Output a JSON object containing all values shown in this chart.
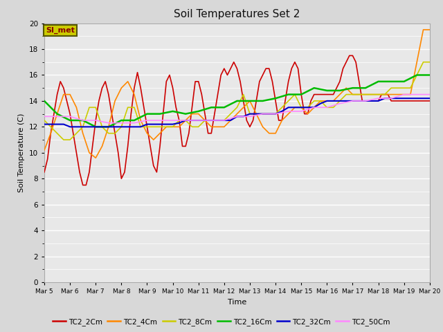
{
  "title": "Soil Temperatures Set 2",
  "xlabel": "Time",
  "ylabel": "Soil Temperature (C)",
  "ylim": [
    0,
    20
  ],
  "background_color": "#d8d8d8",
  "plot_bg_color": "#e8e8e8",
  "annotation_text": "SI_met",
  "annotation_bg": "#cccc00",
  "annotation_border": "#555500",
  "annotation_text_color": "#880000",
  "x_tick_labels": [
    "Mar 5",
    "Mar 6",
    "Mar 7",
    "Mar 8",
    "Mar 9",
    "Mar 10",
    "Mar 11",
    "Mar 12",
    "Mar 13",
    "Mar 14",
    "Mar 15",
    "Mar 16",
    "Mar 17",
    "Mar 18",
    "Mar 19",
    "Mar 20"
  ],
  "series": [
    {
      "name": "TC2_2Cm",
      "color": "#cc0000",
      "linewidth": 1.2,
      "x": [
        0,
        0.125,
        0.25,
        0.375,
        0.5,
        0.625,
        0.75,
        0.875,
        1.0,
        1.125,
        1.25,
        1.375,
        1.5,
        1.625,
        1.75,
        1.875,
        2.0,
        2.125,
        2.25,
        2.375,
        2.5,
        2.625,
        2.75,
        2.875,
        3.0,
        3.125,
        3.25,
        3.375,
        3.5,
        3.625,
        3.75,
        3.875,
        4.0,
        4.125,
        4.25,
        4.375,
        4.5,
        4.625,
        4.75,
        4.875,
        5.0,
        5.125,
        5.25,
        5.375,
        5.5,
        5.625,
        5.75,
        5.875,
        6.0,
        6.125,
        6.25,
        6.375,
        6.5,
        6.625,
        6.75,
        6.875,
        7.0,
        7.125,
        7.25,
        7.375,
        7.5,
        7.625,
        7.75,
        7.875,
        8.0,
        8.125,
        8.25,
        8.375,
        8.5,
        8.625,
        8.75,
        8.875,
        9.0,
        9.125,
        9.25,
        9.375,
        9.5,
        9.625,
        9.75,
        9.875,
        10.0,
        10.125,
        10.25,
        10.375,
        10.5,
        10.625,
        10.75,
        10.875,
        11.0,
        11.125,
        11.25,
        11.375,
        11.5,
        11.625,
        11.75,
        11.875,
        12.0,
        12.125,
        12.25,
        12.375,
        12.5,
        12.625,
        12.75,
        12.875,
        13.0,
        13.125,
        13.25,
        13.375,
        13.5,
        13.625,
        13.75,
        13.875,
        14.0,
        14.125,
        14.25,
        14.375,
        14.5,
        14.625,
        14.75,
        14.875,
        15.0
      ],
      "y": [
        8.5,
        9.5,
        11.5,
        13.0,
        14.5,
        15.5,
        15.0,
        14.0,
        13.0,
        11.5,
        10.0,
        8.5,
        7.5,
        7.5,
        8.5,
        10.5,
        12.5,
        14.0,
        15.0,
        15.5,
        14.5,
        13.0,
        11.5,
        10.0,
        8.0,
        8.5,
        10.5,
        13.0,
        15.0,
        16.2,
        15.0,
        13.5,
        12.0,
        10.5,
        9.0,
        8.5,
        10.5,
        13.0,
        15.5,
        16.0,
        15.0,
        13.5,
        12.5,
        10.5,
        10.5,
        11.5,
        13.5,
        15.5,
        15.5,
        14.5,
        13.0,
        11.5,
        11.5,
        13.0,
        14.5,
        16.0,
        16.5,
        16.0,
        16.5,
        17.0,
        16.5,
        15.5,
        14.0,
        12.5,
        12.0,
        12.5,
        14.0,
        15.5,
        16.0,
        16.5,
        16.5,
        15.5,
        14.0,
        12.5,
        12.5,
        14.0,
        15.5,
        16.5,
        17.0,
        16.5,
        14.5,
        13.0,
        13.0,
        14.0,
        14.5,
        14.5,
        14.5,
        14.5,
        14.5,
        14.5,
        14.5,
        15.0,
        15.5,
        16.5,
        17.0,
        17.5,
        17.5,
        17.0,
        15.5,
        14.0,
        14.0,
        14.0,
        14.0,
        14.0,
        14.0,
        14.5,
        14.5,
        14.5,
        14.0,
        14.0,
        14.0,
        14.0,
        14.0,
        14.0,
        14.0,
        14.0,
        14.0,
        14.0,
        14.0,
        14.0,
        14.0
      ]
    },
    {
      "name": "TC2_4Cm",
      "color": "#ff8800",
      "linewidth": 1.2,
      "x": [
        0,
        0.25,
        0.5,
        0.75,
        1.0,
        1.25,
        1.5,
        1.75,
        2.0,
        2.25,
        2.5,
        2.75,
        3.0,
        3.25,
        3.5,
        3.75,
        4.0,
        4.25,
        4.5,
        4.75,
        5.0,
        5.25,
        5.5,
        5.75,
        6.0,
        6.25,
        6.5,
        6.75,
        7.0,
        7.25,
        7.5,
        7.75,
        8.0,
        8.25,
        8.5,
        8.75,
        9.0,
        9.25,
        9.5,
        9.75,
        10.0,
        10.25,
        10.5,
        10.75,
        11.0,
        11.25,
        11.5,
        11.75,
        12.0,
        12.25,
        12.5,
        12.75,
        13.0,
        13.25,
        13.5,
        13.75,
        14.0,
        14.25,
        14.5,
        14.75,
        15.0
      ],
      "y": [
        10.2,
        11.5,
        13.0,
        14.5,
        14.5,
        13.5,
        11.5,
        10.0,
        9.6,
        10.5,
        12.0,
        14.0,
        15.0,
        15.5,
        14.5,
        12.5,
        11.5,
        11.0,
        11.5,
        12.0,
        12.0,
        12.0,
        12.5,
        13.0,
        13.0,
        12.5,
        12.0,
        12.0,
        12.0,
        12.5,
        13.0,
        13.5,
        14.0,
        13.0,
        12.0,
        11.5,
        11.5,
        12.5,
        13.0,
        13.5,
        13.5,
        13.0,
        13.5,
        14.0,
        14.0,
        14.0,
        14.5,
        15.0,
        14.5,
        14.5,
        14.5,
        14.5,
        14.5,
        14.5,
        14.5,
        14.5,
        14.5,
        14.5,
        17.0,
        19.5,
        19.5
      ]
    },
    {
      "name": "TC2_8Cm",
      "color": "#cccc00",
      "linewidth": 1.2,
      "x": [
        0,
        0.25,
        0.5,
        0.75,
        1.0,
        1.25,
        1.5,
        1.75,
        2.0,
        2.25,
        2.5,
        2.75,
        3.0,
        3.25,
        3.5,
        3.75,
        4.0,
        4.25,
        4.5,
        4.75,
        5.0,
        5.25,
        5.5,
        5.75,
        6.0,
        6.25,
        6.5,
        6.75,
        7.0,
        7.25,
        7.5,
        7.75,
        8.0,
        8.25,
        8.5,
        8.75,
        9.0,
        9.25,
        9.5,
        9.75,
        10.0,
        10.25,
        10.5,
        10.75,
        11.0,
        11.25,
        11.5,
        11.75,
        12.0,
        12.25,
        12.5,
        12.75,
        13.0,
        13.25,
        13.5,
        13.75,
        14.0,
        14.25,
        14.5,
        14.75,
        15.0
      ],
      "y": [
        12.5,
        12.0,
        11.5,
        11.0,
        11.0,
        11.5,
        12.0,
        13.5,
        13.5,
        12.0,
        11.5,
        11.5,
        12.0,
        13.5,
        13.5,
        12.0,
        12.0,
        12.0,
        12.0,
        12.0,
        12.0,
        12.5,
        12.5,
        12.0,
        12.0,
        12.5,
        12.5,
        12.5,
        12.5,
        13.0,
        13.5,
        14.5,
        13.0,
        13.0,
        13.0,
        13.0,
        13.0,
        13.5,
        14.0,
        14.5,
        13.5,
        13.5,
        14.0,
        14.0,
        13.5,
        13.5,
        14.0,
        14.5,
        14.5,
        14.5,
        14.5,
        14.5,
        14.5,
        14.5,
        15.0,
        15.0,
        15.0,
        15.0,
        16.0,
        17.0,
        17.0
      ]
    },
    {
      "name": "TC2_16Cm",
      "color": "#00bb00",
      "linewidth": 1.8,
      "x": [
        0,
        0.5,
        1.0,
        1.5,
        2.0,
        2.5,
        3.0,
        3.5,
        4.0,
        4.5,
        5.0,
        5.5,
        6.0,
        6.5,
        7.0,
        7.5,
        8.0,
        8.5,
        9.0,
        9.5,
        10.0,
        10.5,
        11.0,
        11.5,
        12.0,
        12.5,
        13.0,
        13.5,
        14.0,
        14.5,
        15.0
      ],
      "y": [
        14.0,
        13.0,
        12.5,
        12.5,
        12.0,
        12.0,
        12.5,
        12.5,
        13.0,
        13.0,
        13.2,
        13.0,
        13.2,
        13.5,
        13.5,
        14.0,
        14.0,
        14.0,
        14.2,
        14.5,
        14.5,
        15.0,
        14.8,
        14.8,
        15.0,
        15.0,
        15.5,
        15.5,
        15.5,
        16.0,
        16.0
      ]
    },
    {
      "name": "TC2_32Cm",
      "color": "#0000cc",
      "linewidth": 1.5,
      "x": [
        0,
        0.25,
        0.5,
        0.75,
        1.0,
        1.25,
        1.5,
        1.75,
        2.0,
        2.25,
        2.5,
        2.75,
        3.0,
        3.25,
        3.5,
        3.75,
        4.0,
        4.25,
        4.5,
        4.75,
        5.0,
        5.25,
        5.5,
        5.75,
        6.0,
        6.25,
        6.5,
        6.75,
        7.0,
        7.25,
        7.5,
        7.75,
        8.0,
        8.25,
        8.5,
        8.75,
        9.0,
        9.25,
        9.5,
        9.75,
        10.0,
        10.25,
        10.5,
        10.75,
        11.0,
        11.25,
        11.5,
        11.75,
        12.0,
        12.25,
        12.5,
        12.75,
        13.0,
        13.25,
        13.5,
        13.75,
        14.0,
        14.25,
        14.5,
        14.75,
        15.0
      ],
      "y": [
        12.2,
        12.2,
        12.2,
        12.2,
        12.0,
        12.0,
        12.0,
        12.0,
        12.0,
        12.0,
        12.0,
        12.0,
        12.0,
        12.0,
        12.0,
        12.0,
        12.2,
        12.2,
        12.2,
        12.2,
        12.2,
        12.3,
        12.5,
        12.5,
        12.5,
        12.5,
        12.5,
        12.5,
        12.5,
        12.5,
        12.8,
        12.8,
        13.0,
        13.0,
        13.0,
        13.0,
        13.0,
        13.2,
        13.5,
        13.5,
        13.5,
        13.5,
        13.5,
        13.8,
        14.0,
        14.0,
        14.0,
        14.0,
        14.0,
        14.0,
        14.0,
        14.0,
        14.0,
        14.2,
        14.2,
        14.2,
        14.2,
        14.2,
        14.2,
        14.2,
        14.2
      ]
    },
    {
      "name": "TC2_50Cm",
      "color": "#ff88ff",
      "linewidth": 1.2,
      "x": [
        0,
        0.5,
        1.0,
        1.5,
        2.0,
        2.5,
        3.0,
        3.5,
        4.0,
        4.5,
        5.0,
        5.5,
        6.0,
        6.5,
        7.0,
        7.5,
        8.0,
        8.5,
        9.0,
        9.5,
        10.0,
        10.5,
        11.0,
        11.5,
        12.0,
        12.5,
        13.0,
        13.5,
        14.0,
        14.5,
        15.0
      ],
      "y": [
        12.8,
        12.8,
        12.8,
        12.5,
        12.5,
        12.3,
        12.3,
        12.3,
        12.5,
        12.5,
        12.5,
        12.5,
        12.5,
        12.5,
        12.5,
        12.8,
        12.8,
        13.0,
        13.0,
        13.2,
        13.2,
        13.5,
        13.5,
        13.8,
        14.0,
        14.0,
        14.2,
        14.2,
        14.5,
        14.5,
        14.5
      ]
    }
  ]
}
